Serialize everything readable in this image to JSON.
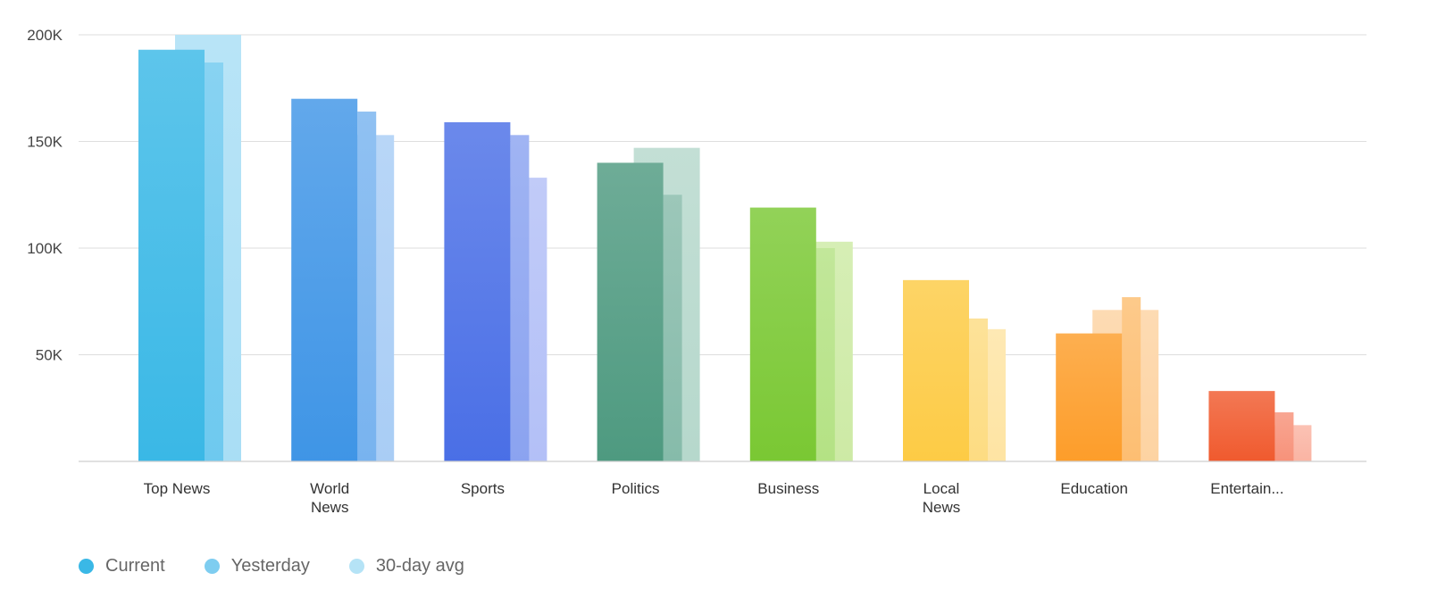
{
  "chart_data": {
    "type": "bar",
    "categories": [
      [
        "Top News"
      ],
      [
        "World",
        "News"
      ],
      [
        "Sports"
      ],
      [
        "Politics"
      ],
      [
        "Business"
      ],
      [
        "Local",
        "News"
      ],
      [
        "Education"
      ],
      [
        "Entertain..."
      ]
    ],
    "series": [
      {
        "name": "Current",
        "values": [
          193000,
          170000,
          159000,
          140000,
          119000,
          85000,
          60000,
          33000
        ]
      },
      {
        "name": "Yesterday",
        "values": [
          187000,
          164000,
          153000,
          125000,
          100000,
          67000,
          77000,
          23000
        ]
      },
      {
        "name": "30-day avg",
        "values": [
          200000,
          153000,
          133000,
          147000,
          103000,
          62000,
          71000,
          17000
        ]
      }
    ],
    "yticks": [
      {
        "value": 50000,
        "label": "50K"
      },
      {
        "value": 100000,
        "label": "100K"
      },
      {
        "value": 150000,
        "label": "150K"
      },
      {
        "value": 200000,
        "label": "200K"
      }
    ],
    "ylim": [
      0,
      200000
    ],
    "grid": true,
    "legend_position": "bottom-left",
    "palettes": [
      [
        "#3ab8e6",
        "#6ec9ef",
        "#a9def5"
      ],
      [
        "#3f95e6",
        "#78b3ef",
        "#a9cdf5"
      ],
      [
        "#4a6fe6",
        "#8ba3f0",
        "#b3c0f7"
      ],
      [
        "#4e9a80",
        "#86bbaa",
        "#b6d8cc"
      ],
      [
        "#7ac833",
        "#b4e284",
        "#cdeaa5"
      ],
      [
        "#fdcb45",
        "#fddc82",
        "#fee4a3"
      ],
      [
        "#fd9d2a",
        "#fdbe72",
        "#fdd3a2"
      ],
      [
        "#f05a2e",
        "#f7927a",
        "#fab4a3"
      ]
    ]
  },
  "legend": {
    "items": [
      {
        "label": "Current",
        "color": "#3ab8e6"
      },
      {
        "label": "Yesterday",
        "color": "#7ecdf0"
      },
      {
        "label": "30-day avg",
        "color": "#b5e3f6"
      }
    ]
  }
}
